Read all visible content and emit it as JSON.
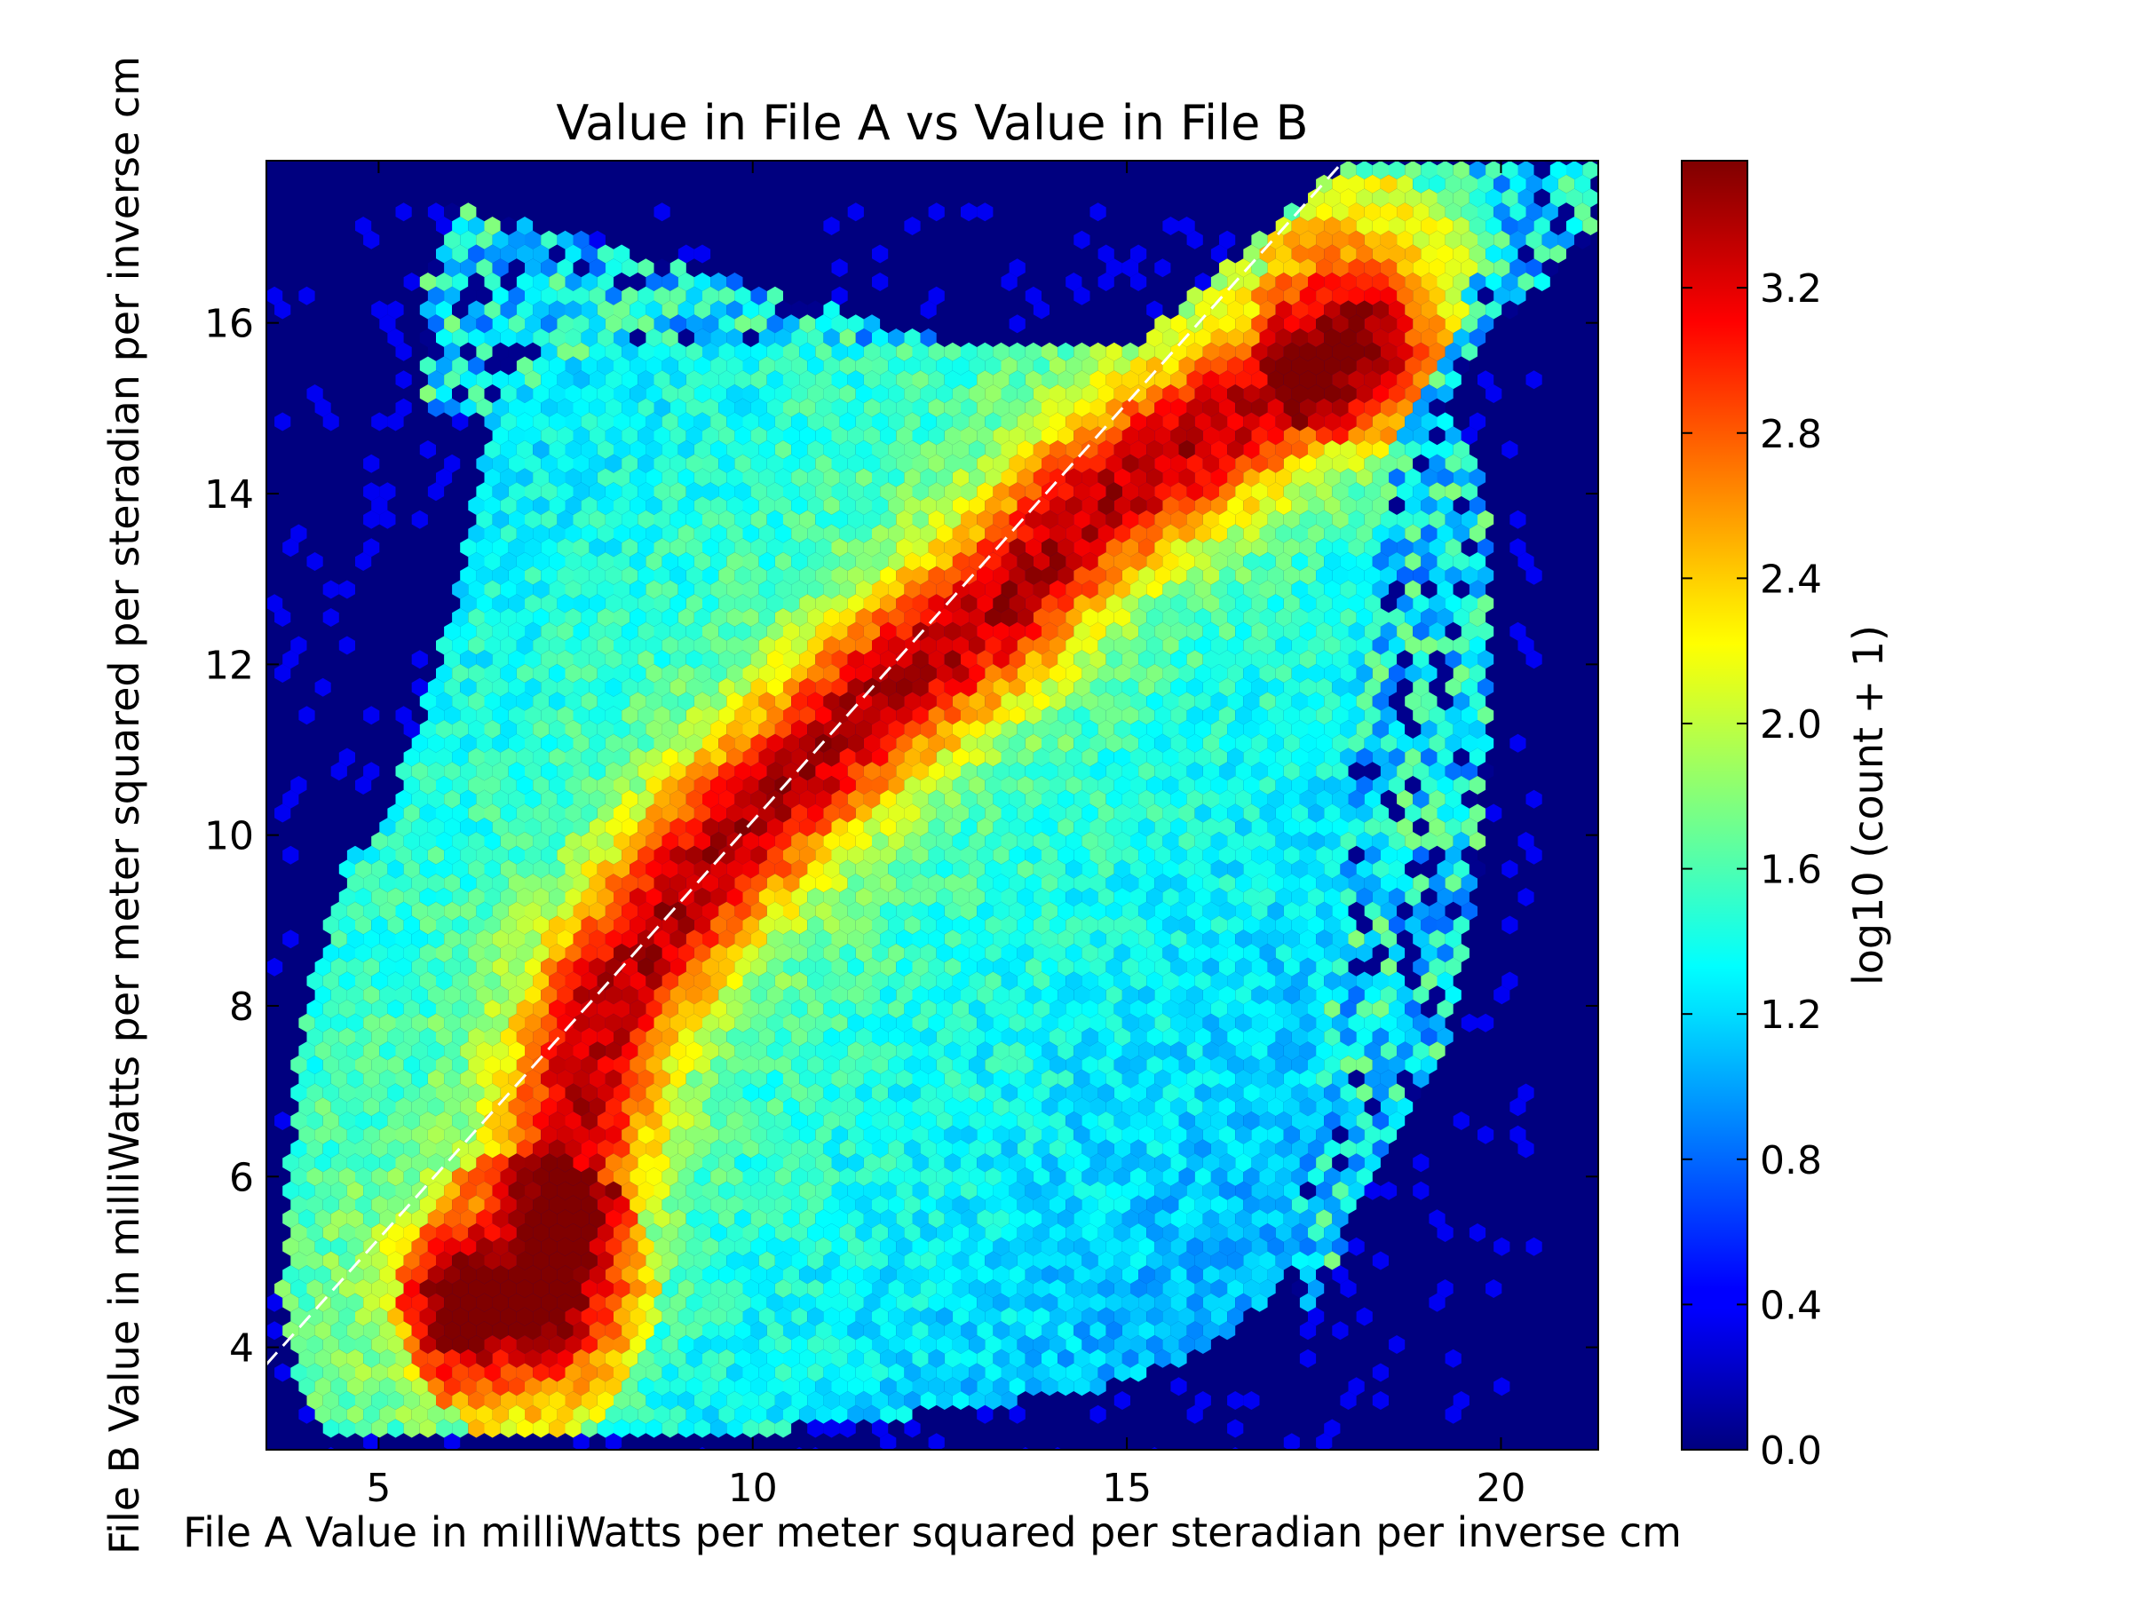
{
  "chart_data": {
    "type": "heatmap",
    "subtype": "hexbin",
    "title": "Value in File A vs Value in File B",
    "xlabel": "File A Value in milliWatts per meter squared per steradian per inverse cm",
    "ylabel": "File B Value in milliWatts per meter squared per steradian per inverse cm",
    "xlim": [
      3.5,
      21.3
    ],
    "ylim": [
      2.8,
      17.9
    ],
    "xticks": [
      5,
      10,
      15,
      20
    ],
    "xtick_labels": [
      "5",
      "10",
      "15",
      "20"
    ],
    "yticks": [
      4,
      6,
      8,
      10,
      12,
      14,
      16
    ],
    "ytick_labels": [
      "4",
      "6",
      "8",
      "10",
      "12",
      "14",
      "16"
    ],
    "colorbar": {
      "label": "log10 (count + 1)",
      "range": [
        0.0,
        3.55
      ],
      "ticks": [
        0.0,
        0.4,
        0.8,
        1.2,
        1.6,
        2.0,
        2.4,
        2.8,
        3.2
      ],
      "tick_labels": [
        "0.0",
        "0.4",
        "0.8",
        "1.2",
        "1.6",
        "2.0",
        "2.4",
        "2.8",
        "3.2"
      ],
      "colormap": "jet"
    },
    "reference_line": {
      "style": "dashed",
      "color": "#ffffff",
      "x": [
        3.5,
        17.9
      ],
      "y": [
        3.8,
        17.9
      ]
    },
    "density_ridges": [
      {
        "name": "",
        "points": [
          [
            6.3,
            4.5
          ],
          [
            7.2,
            4.6
          ],
          [
            8.0,
            8.0
          ],
          [
            9.5,
            9.8
          ],
          [
            11.5,
            11.5
          ],
          [
            13.2,
            12.6
          ],
          [
            14.5,
            13.8
          ],
          [
            16.3,
            14.8
          ],
          [
            18.0,
            15.7
          ]
        ]
      }
    ],
    "peak_value": 3.5,
    "background_value": 0.0,
    "grid": false
  },
  "colors": {
    "background": "#00007f",
    "reference_line": "#ffffff"
  }
}
